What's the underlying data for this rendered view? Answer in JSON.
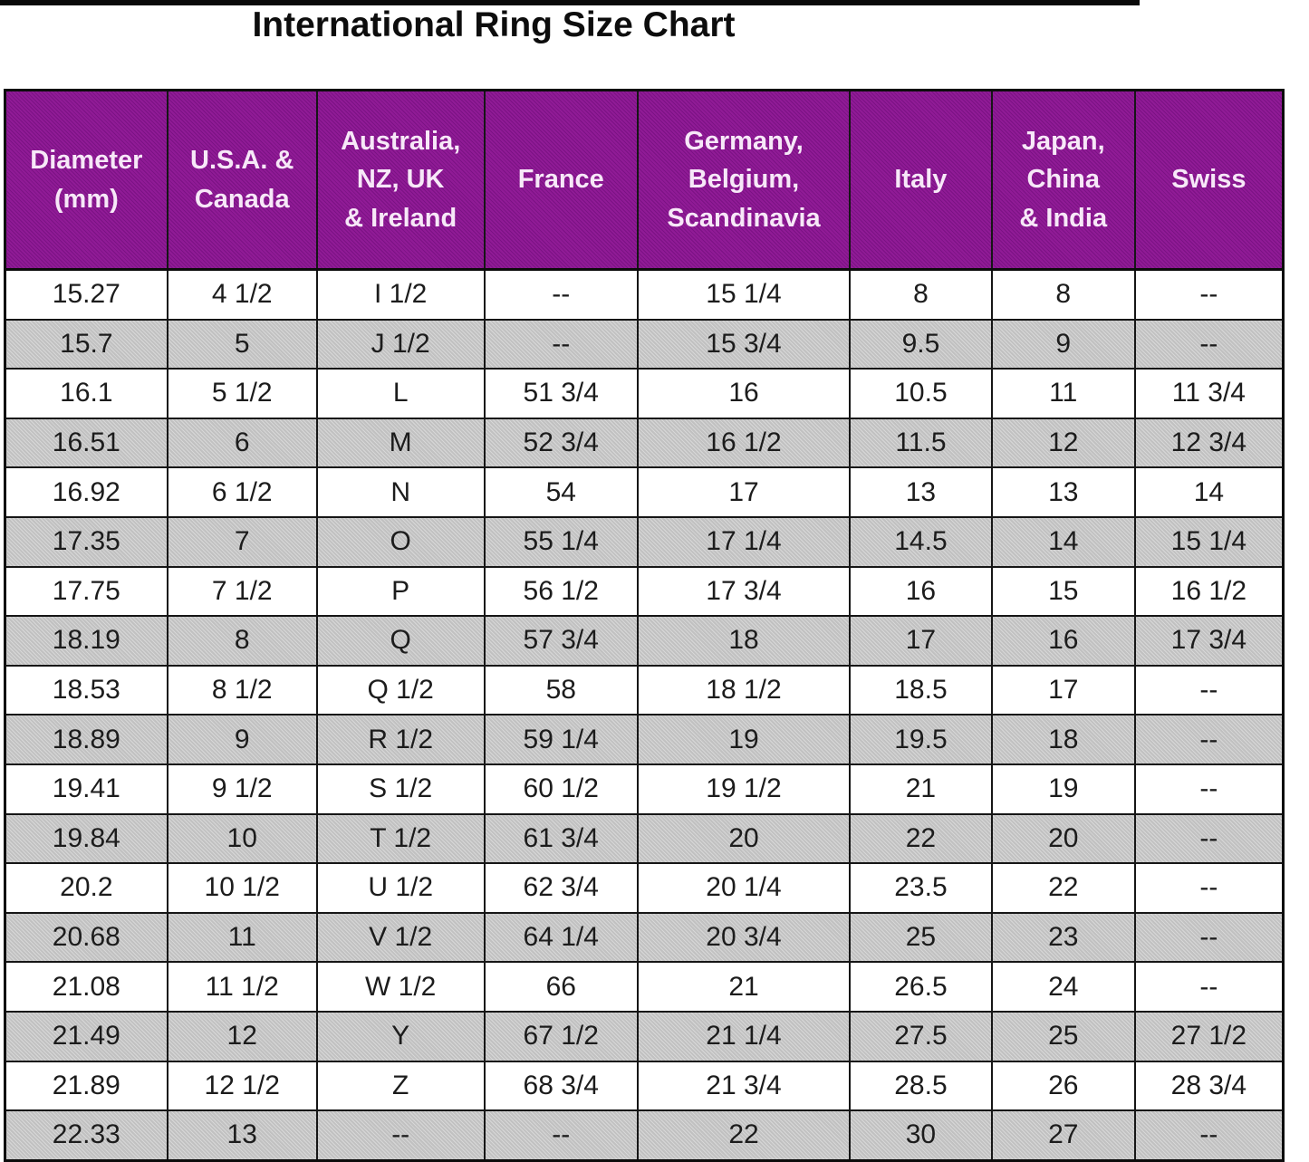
{
  "title": "International Ring Size Chart",
  "colors": {
    "header_bg": "#8E1694",
    "header_text": "#F7E8F8",
    "row_bg": "#FFFFFF",
    "row_alt_bg": "#C9C9C9",
    "border": "#161616",
    "top_strip": "#0A0A0A"
  },
  "layout": {
    "header_lines": [
      [
        "Diameter",
        "(mm)"
      ],
      [
        "U.S.A. &",
        "Canada"
      ],
      [
        "Australia,",
        "NZ, UK",
        "& Ireland"
      ],
      [
        "France"
      ],
      [
        "Germany,",
        "Belgium,",
        "Scandinavia"
      ],
      [
        "Italy"
      ],
      [
        "Japan,",
        "China",
        "& India"
      ],
      [
        "Swiss"
      ]
    ],
    "col_widths_pct": [
      12.7,
      11.7,
      13.1,
      12.0,
      16.6,
      11.1,
      11.2,
      11.6
    ],
    "row_striping": "white-then-gray-alternating",
    "grid": "black 2px lines, 3px outer border"
  },
  "chart_data": {
    "type": "table",
    "title": "International Ring Size Chart",
    "columns": [
      "Diameter (mm)",
      "U.S.A. & Canada",
      "Australia, NZ, UK & Ireland",
      "France",
      "Germany, Belgium, Scandinavia",
      "Italy",
      "Japan, China & India",
      "Swiss"
    ],
    "rows": [
      [
        "15.27",
        "4 1/2",
        "I 1/2",
        "--",
        "15 1/4",
        "8",
        "8",
        "--"
      ],
      [
        "15.7",
        "5",
        "J 1/2",
        "--",
        "15 3/4",
        "9.5",
        "9",
        "--"
      ],
      [
        "16.1",
        "5 1/2",
        "L",
        "51 3/4",
        "16",
        "10.5",
        "11",
        "11 3/4"
      ],
      [
        "16.51",
        "6",
        "M",
        "52 3/4",
        "16 1/2",
        "11.5",
        "12",
        "12 3/4"
      ],
      [
        "16.92",
        "6 1/2",
        "N",
        "54",
        "17",
        "13",
        "13",
        "14"
      ],
      [
        "17.35",
        "7",
        "O",
        "55 1/4",
        "17 1/4",
        "14.5",
        "14",
        "15 1/4"
      ],
      [
        "17.75",
        "7 1/2",
        "P",
        "56 1/2",
        "17 3/4",
        "16",
        "15",
        "16 1/2"
      ],
      [
        "18.19",
        "8",
        "Q",
        "57 3/4",
        "18",
        "17",
        "16",
        "17 3/4"
      ],
      [
        "18.53",
        "8 1/2",
        "Q 1/2",
        "58",
        "18 1/2",
        "18.5",
        "17",
        "--"
      ],
      [
        "18.89",
        "9",
        "R 1/2",
        "59 1/4",
        "19",
        "19.5",
        "18",
        "--"
      ],
      [
        "19.41",
        "9 1/2",
        "S 1/2",
        "60 1/2",
        "19 1/2",
        "21",
        "19",
        "--"
      ],
      [
        "19.84",
        "10",
        "T 1/2",
        "61 3/4",
        "20",
        "22",
        "20",
        "--"
      ],
      [
        "20.2",
        "10 1/2",
        "U 1/2",
        "62 3/4",
        "20 1/4",
        "23.5",
        "22",
        "--"
      ],
      [
        "20.68",
        "11",
        "V 1/2",
        "64 1/4",
        "20 3/4",
        "25",
        "23",
        "--"
      ],
      [
        "21.08",
        "11 1/2",
        "W 1/2",
        "66",
        "21",
        "26.5",
        "24",
        "--"
      ],
      [
        "21.49",
        "12",
        "Y",
        "67 1/2",
        "21 1/4",
        "27.5",
        "25",
        "27 1/2"
      ],
      [
        "21.89",
        "12 1/2",
        "Z",
        "68 3/4",
        "21 3/4",
        "28.5",
        "26",
        "28 3/4"
      ],
      [
        "22.33",
        "13",
        "--",
        "--",
        "22",
        "30",
        "27",
        "--"
      ]
    ]
  }
}
